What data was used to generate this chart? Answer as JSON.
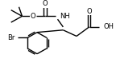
{
  "bg_color": "#ffffff",
  "line_color": "#000000",
  "lw": 1.0,
  "fs": 6.0,
  "figsize": [
    1.44,
    0.88
  ],
  "dpi": 100,
  "xlim": [
    0,
    144
  ],
  "ylim": [
    0,
    88
  ]
}
